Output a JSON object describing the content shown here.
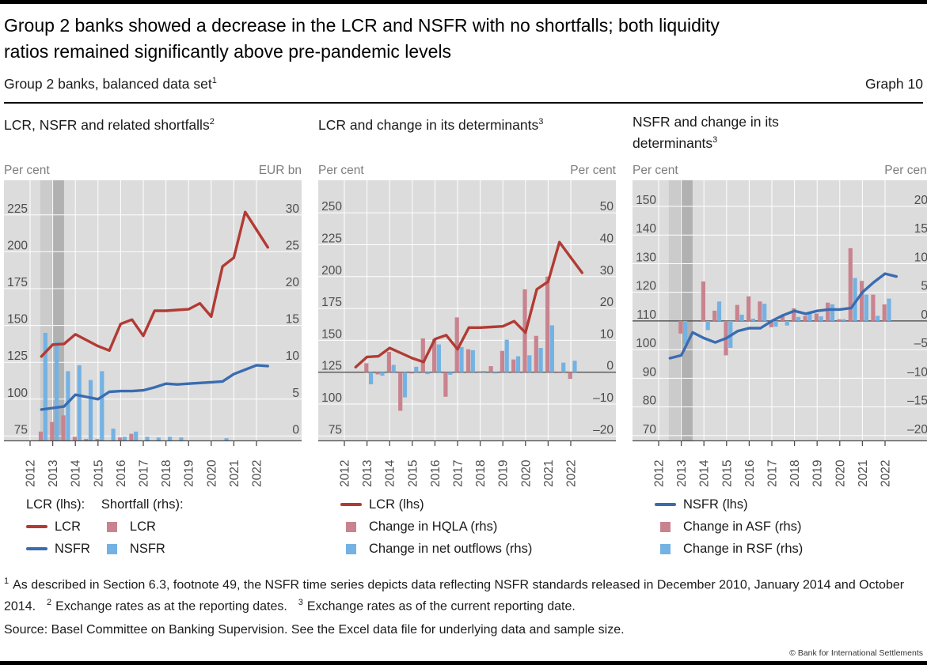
{
  "header": {
    "title": "Group 2 banks showed a decrease in the LCR and NSFR with no shortfalls; both liquidity\nratios remained significantly above pre-pandemic levels",
    "subtitle": "Group 2 banks, balanced data set",
    "subtitle_sup": "1",
    "graph_label": "Graph 10"
  },
  "colors": {
    "red": "#b13b34",
    "blue": "#3a6cb0",
    "pink": "#c9838f",
    "lightblue": "#74b2e3",
    "plot_bg": "#dcdcdc",
    "shade_light": "#cbcbcb",
    "shade_dark": "#b1b1b1",
    "grid": "#ffffff",
    "axis": "#4d4d4d",
    "zero_line": "#404040"
  },
  "chart_data": [
    {
      "type": "line+bar",
      "title": "LCR, NSFR and related shortfalls",
      "title_sup": "2",
      "unit_left": "Per cent",
      "unit_right": "EUR bn",
      "x_tick_labels": [
        "2012",
        "2013",
        "2014",
        "2015",
        "2016",
        "2017",
        "2018",
        "2019",
        "2020",
        "2021",
        "2022"
      ],
      "x_tick_years": [
        2012,
        2013,
        2014,
        2015,
        2016,
        2017,
        2018,
        2019,
        2020,
        2021,
        2022
      ],
      "left_ticks": [
        75,
        100,
        125,
        150,
        175,
        200,
        225
      ],
      "left_min": 72,
      "left_max": 248.5,
      "right_ticks": [
        0,
        5,
        10,
        15,
        20,
        25,
        30
      ],
      "right_to_left": {
        "offset": 75,
        "scale": 5
      },
      "zero_line": false,
      "bars_baseline": "bottom",
      "shading": {
        "from": 2012.45,
        "mid": 2012.97,
        "to": 2013.5
      },
      "line_x": [
        2012.5,
        2013,
        2013.5,
        2014,
        2014.5,
        2015,
        2015.5,
        2016,
        2016.5,
        2017,
        2017.5,
        2018,
        2018.5,
        2019,
        2019.5,
        2020,
        2020.5,
        2021,
        2021.5,
        2022,
        2022.5
      ],
      "lines": [
        {
          "name": "LCR (lhs)",
          "color": "red",
          "values": [
            129,
            137,
            137.5,
            144,
            140,
            136,
            133,
            151,
            154,
            143,
            160,
            160,
            160.5,
            161,
            165,
            156,
            190,
            196,
            227,
            215,
            203
          ]
        },
        {
          "name": "NSFR (lhs)",
          "color": "blue",
          "values": [
            93,
            94,
            95,
            103,
            101.5,
            100,
            105,
            105.5,
            105.5,
            106,
            108,
            110.5,
            110,
            110.5,
            111,
            111.5,
            112,
            117,
            120,
            123,
            122.5
          ]
        }
      ],
      "bar_x": [
        2012.5,
        2013,
        2013.5,
        2014,
        2014.5,
        2015,
        2015.5,
        2016,
        2016.5,
        2017,
        2017.5,
        2018,
        2018.5,
        2019,
        2019.5,
        2020,
        2020.5,
        2021,
        2021.5,
        2022
      ],
      "bars": [
        {
          "name": "LCR shortfall (rhs)",
          "color": "pink",
          "values": [
            1.2,
            2.5,
            3.4,
            0.5,
            0.2,
            0.2,
            null,
            0.4,
            0.9,
            null,
            null,
            null,
            null,
            null,
            null,
            null,
            null,
            null,
            null,
            null
          ]
        },
        {
          "name": "NSFR shortfall (rhs)",
          "color": "lightblue",
          "values": [
            14.6,
            13.4,
            9.4,
            10.2,
            8.2,
            9.4,
            1.6,
            0.5,
            1.2,
            0.5,
            0.4,
            0.5,
            0.4,
            null,
            null,
            null,
            0.3,
            null,
            null,
            null
          ]
        }
      ],
      "legend_columns": [
        {
          "header": "LCR (lhs):",
          "items": [
            {
              "swatch": "line",
              "color": "red",
              "label": "LCR"
            },
            {
              "swatch": "line",
              "color": "blue",
              "label": "NSFR"
            }
          ]
        },
        {
          "header": "Shortfall (rhs):",
          "items": [
            {
              "swatch": "square",
              "color": "pink",
              "label": "LCR"
            },
            {
              "swatch": "square",
              "color": "lightblue",
              "label": "NSFR"
            }
          ]
        }
      ]
    },
    {
      "type": "line+bar",
      "title": "LCR and change in its determinants",
      "title_sup": "3",
      "unit_left": "Per cent",
      "unit_right": "Per cent",
      "x_tick_labels": [
        "2012",
        "2013",
        "2014",
        "2015",
        "2016",
        "2017",
        "2018",
        "2019",
        "2020",
        "2021",
        "2022"
      ],
      "x_tick_years": [
        2012,
        2013,
        2014,
        2015,
        2016,
        2017,
        2018,
        2019,
        2020,
        2021,
        2022
      ],
      "left_ticks": [
        75,
        100,
        125,
        150,
        175,
        200,
        225,
        250
      ],
      "left_min": 71.5,
      "left_max": 275.5,
      "right_ticks": [
        -20,
        -10,
        0,
        10,
        20,
        30,
        40,
        50
      ],
      "right_to_left": {
        "offset": 125,
        "scale": 2.5
      },
      "zero_line": true,
      "bars_baseline": "zero",
      "shading": null,
      "line_x": [
        2012.5,
        2013,
        2013.5,
        2014,
        2014.5,
        2015,
        2015.5,
        2016,
        2016.5,
        2017,
        2017.5,
        2018,
        2018.5,
        2019,
        2019.5,
        2020,
        2020.5,
        2021,
        2021.5,
        2022,
        2022.5
      ],
      "lines": [
        {
          "name": "LCR (lhs)",
          "color": "red",
          "values": [
            129,
            137,
            137.5,
            144,
            140,
            136,
            133,
            151,
            154,
            143,
            160,
            160,
            160.5,
            161,
            165,
            156,
            190,
            196,
            227,
            215,
            203
          ]
        }
      ],
      "bar_x": [
        2012.5,
        2013,
        2013.5,
        2014,
        2014.5,
        2015,
        2015.5,
        2016,
        2016.5,
        2017,
        2017.5,
        2018,
        2018.5,
        2019,
        2019.5,
        2020,
        2020.5,
        2021,
        2021.5,
        2022
      ],
      "bars": [
        {
          "name": "Change in HQLA (rhs)",
          "color": "pink",
          "values": [
            null,
            2.8,
            -0.7,
            6.4,
            -12.1,
            -0.4,
            10.6,
            10.4,
            -7.7,
            17.2,
            7.2,
            0.3,
            1.9,
            6.7,
            4.0,
            26.0,
            11.4,
            30.0,
            -0.3,
            -2.1
          ]
        },
        {
          "name": "Change in net outflows (rhs)",
          "color": "lightblue",
          "values": [
            null,
            -3.8,
            -1.1,
            2.3,
            -7.9,
            1.7,
            -0.6,
            8.7,
            -0.8,
            7.9,
            6.9,
            0.4,
            -0.4,
            10.2,
            5.0,
            5.3,
            7.6,
            14.7,
            3.0,
            3.6
          ]
        }
      ],
      "legend_columns": [
        {
          "header": null,
          "items": [
            {
              "swatch": "line",
              "color": "red",
              "label": "LCR (lhs)"
            },
            {
              "swatch": "square",
              "color": "pink",
              "label": "Change in HQLA (rhs)"
            },
            {
              "swatch": "square",
              "color": "lightblue",
              "label": "Change in net outflows (rhs)"
            }
          ]
        }
      ]
    },
    {
      "type": "line+bar",
      "title": "NSFR and change in its\ndeterminants",
      "title_sup": "3",
      "unit_left": "Per cent",
      "unit_right": "Per cent",
      "x_tick_labels": [
        "2012",
        "2013",
        "2014",
        "2015",
        "2016",
        "2017",
        "2018",
        "2019",
        "2020",
        "2021",
        "2022"
      ],
      "x_tick_years": [
        2012,
        2013,
        2014,
        2015,
        2016,
        2017,
        2018,
        2019,
        2020,
        2021,
        2022
      ],
      "left_ticks": [
        70,
        80,
        90,
        100,
        110,
        120,
        130,
        140,
        150
      ],
      "left_min": 68.3,
      "left_max": 159.1,
      "right_ticks": [
        -20,
        -15,
        -10,
        -5,
        0,
        5,
        10,
        15,
        20
      ],
      "right_to_left": {
        "offset": 110,
        "scale": 2
      },
      "zero_line": true,
      "bars_baseline": "zero",
      "shading": {
        "from": 2012.45,
        "mid": 2012.97,
        "to": 2013.5
      },
      "line_x": [
        2012.5,
        2013,
        2013.5,
        2014,
        2014.5,
        2015,
        2015.5,
        2016,
        2016.5,
        2017,
        2017.5,
        2018,
        2018.5,
        2019,
        2019.5,
        2020,
        2020.5,
        2021,
        2021.5,
        2022,
        2022.5
      ],
      "lines": [
        {
          "name": "NSFR (lhs)",
          "color": "blue",
          "values": [
            97,
            98,
            106,
            104,
            102.5,
            104,
            106.5,
            107.5,
            107.5,
            110,
            112,
            113.5,
            112.5,
            113.5,
            114,
            114,
            114.5,
            120,
            123.5,
            126.5,
            125.5
          ]
        }
      ],
      "bar_x": [
        2012.5,
        2013,
        2013.5,
        2014,
        2014.5,
        2015,
        2015.5,
        2016,
        2016.5,
        2017,
        2017.5,
        2018,
        2018.5,
        2019,
        2019.5,
        2020,
        2020.5,
        2021,
        2021.5,
        2022
      ],
      "bars": [
        {
          "name": "Change in ASF (rhs)",
          "color": "pink",
          "values": [
            null,
            -2.2,
            null,
            6.9,
            1.8,
            -6.0,
            2.8,
            4.3,
            3.4,
            -1.1,
            1.1,
            2.2,
            0.9,
            1.3,
            3.2,
            0.3,
            12.7,
            7.0,
            4.6,
            2.9
          ]
        },
        {
          "name": "Change in RSF (rhs)",
          "color": "lightblue",
          "values": [
            null,
            -4.0,
            null,
            -1.6,
            3.4,
            -4.7,
            1.1,
            0.4,
            3.0,
            -1.0,
            -0.8,
            0.7,
            1.6,
            0.8,
            2.9,
            0.3,
            7.5,
            4.6,
            0.9,
            3.9
          ]
        }
      ],
      "legend_columns": [
        {
          "header": null,
          "items": [
            {
              "swatch": "line",
              "color": "blue",
              "label": "NSFR (lhs)"
            },
            {
              "swatch": "square",
              "color": "pink",
              "label": "Change in ASF (rhs)"
            },
            {
              "swatch": "square",
              "color": "lightblue",
              "label": "Change in RSF (rhs)"
            }
          ]
        }
      ]
    }
  ],
  "footnotes": {
    "segments": [
      {
        "sup": "1",
        "text": "As described in Section 6.3, footnote 49, the NSFR time series depicts data reflecting NSFR standards released in December 2010, January 2014 and October 2014."
      },
      {
        "sup": "2",
        "text": "Exchange rates as at the reporting dates."
      },
      {
        "sup": "3",
        "text": "Exchange rates as of the current reporting date."
      }
    ],
    "source": "Source: Basel Committee on Banking Supervision. See the Excel data file for underlying data and sample size.",
    "copyright": "© Bank for International Settlements"
  }
}
